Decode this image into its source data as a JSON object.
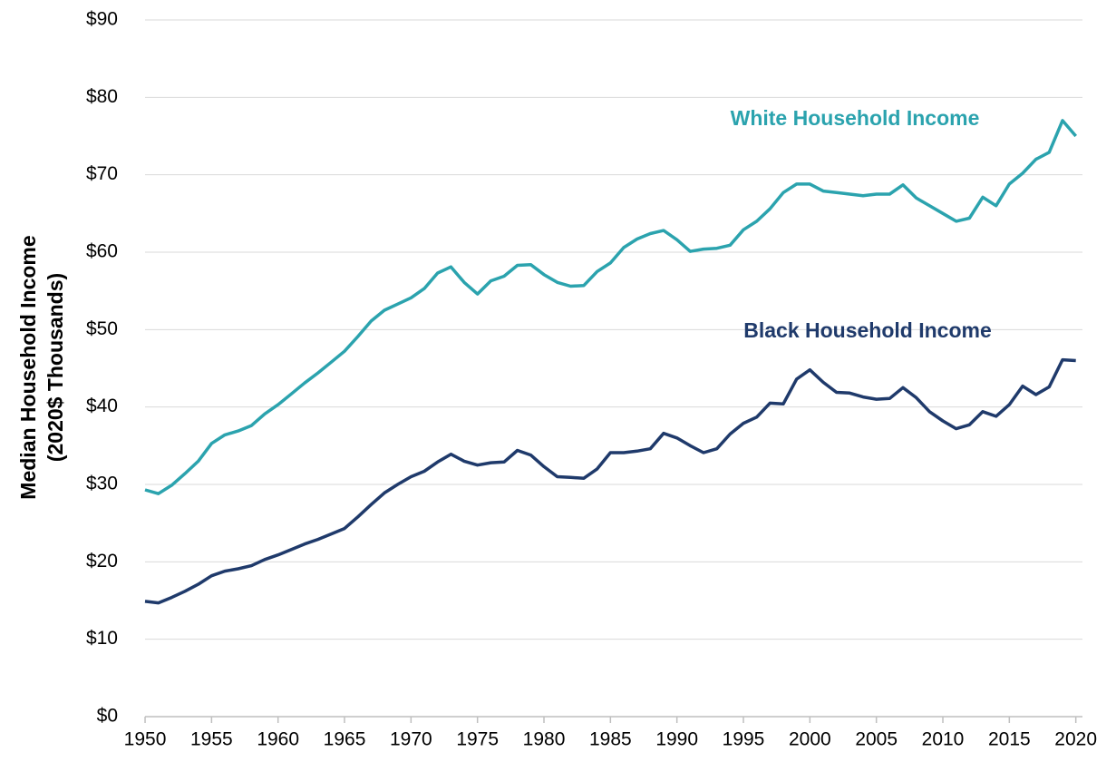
{
  "chart_data": {
    "type": "line",
    "y_label": [
      "Median Household Income",
      "(2020$ Thousands)"
    ],
    "x": [
      1950,
      1951,
      1952,
      1953,
      1954,
      1955,
      1956,
      1957,
      1958,
      1959,
      1960,
      1961,
      1962,
      1963,
      1964,
      1965,
      1966,
      1967,
      1968,
      1969,
      1970,
      1971,
      1972,
      1973,
      1974,
      1975,
      1976,
      1977,
      1978,
      1979,
      1980,
      1981,
      1982,
      1983,
      1984,
      1985,
      1986,
      1987,
      1988,
      1989,
      1990,
      1991,
      1992,
      1993,
      1994,
      1995,
      1996,
      1997,
      1998,
      1999,
      2000,
      2001,
      2002,
      2003,
      2004,
      2005,
      2006,
      2007,
      2008,
      2009,
      2010,
      2011,
      2012,
      2013,
      2014,
      2015,
      2016,
      2017,
      2018,
      2019,
      2020
    ],
    "series": [
      {
        "name": "White Household Income",
        "color": "#2ba3ae",
        "values": [
          29.3,
          28.8,
          29.9,
          31.4,
          33.0,
          35.3,
          36.4,
          36.9,
          37.6,
          39.1,
          40.3,
          41.7,
          43.1,
          44.4,
          45.8,
          47.2,
          49.1,
          51.1,
          52.5,
          53.3,
          54.1,
          55.3,
          57.3,
          58.1,
          56.1,
          54.6,
          56.3,
          56.9,
          58.3,
          58.4,
          57.1,
          56.1,
          55.6,
          55.7,
          57.5,
          58.6,
          60.6,
          61.7,
          62.4,
          62.8,
          61.6,
          60.1,
          60.4,
          60.5,
          60.9,
          62.9,
          64.0,
          65.6,
          67.7,
          68.8,
          68.8,
          67.9,
          67.7,
          67.5,
          67.3,
          67.5,
          67.5,
          68.7,
          67.0,
          66.0,
          65.0,
          64.0,
          64.4,
          67.1,
          66.0,
          68.8,
          70.2,
          72.0,
          72.9,
          77.0,
          75.0
        ]
      },
      {
        "name": "Black Household Income",
        "color": "#1f3a6b",
        "values": [
          14.9,
          14.7,
          15.4,
          16.2,
          17.1,
          18.2,
          18.8,
          19.1,
          19.5,
          20.3,
          20.9,
          21.6,
          22.3,
          22.9,
          23.6,
          24.3,
          25.8,
          27.4,
          28.9,
          30.0,
          31.0,
          31.7,
          32.9,
          33.9,
          33.0,
          32.5,
          32.8,
          32.9,
          34.4,
          33.8,
          32.3,
          31.0,
          30.9,
          30.8,
          32.0,
          34.1,
          34.1,
          34.3,
          34.6,
          36.6,
          36.0,
          35.0,
          34.1,
          34.6,
          36.5,
          37.9,
          38.7,
          40.5,
          40.4,
          43.6,
          44.8,
          43.2,
          41.9,
          41.8,
          41.3,
          41.0,
          41.1,
          42.5,
          41.2,
          39.4,
          38.2,
          37.2,
          37.7,
          39.4,
          38.8,
          40.3,
          42.7,
          41.6,
          42.6,
          46.1,
          46.0
        ]
      }
    ],
    "xlim": [
      1949.5,
      2020.5
    ],
    "xticks": [
      1950,
      1955,
      1960,
      1965,
      1970,
      1975,
      1980,
      1985,
      1990,
      1995,
      2000,
      2005,
      2010,
      2015,
      2020
    ],
    "ylim": [
      0,
      90
    ],
    "yticks": [
      {
        "value": 0,
        "label": "$0"
      },
      {
        "value": 10,
        "label": "$10"
      },
      {
        "value": 20,
        "label": "$20"
      },
      {
        "value": 30,
        "label": "$30"
      },
      {
        "value": 40,
        "label": "$40"
      },
      {
        "value": 50,
        "label": "$50"
      },
      {
        "value": 60,
        "label": "$60"
      },
      {
        "value": 70,
        "label": "$70"
      },
      {
        "value": 80,
        "label": "$80"
      },
      {
        "value": 90,
        "label": "$90"
      }
    ],
    "grid": true
  }
}
